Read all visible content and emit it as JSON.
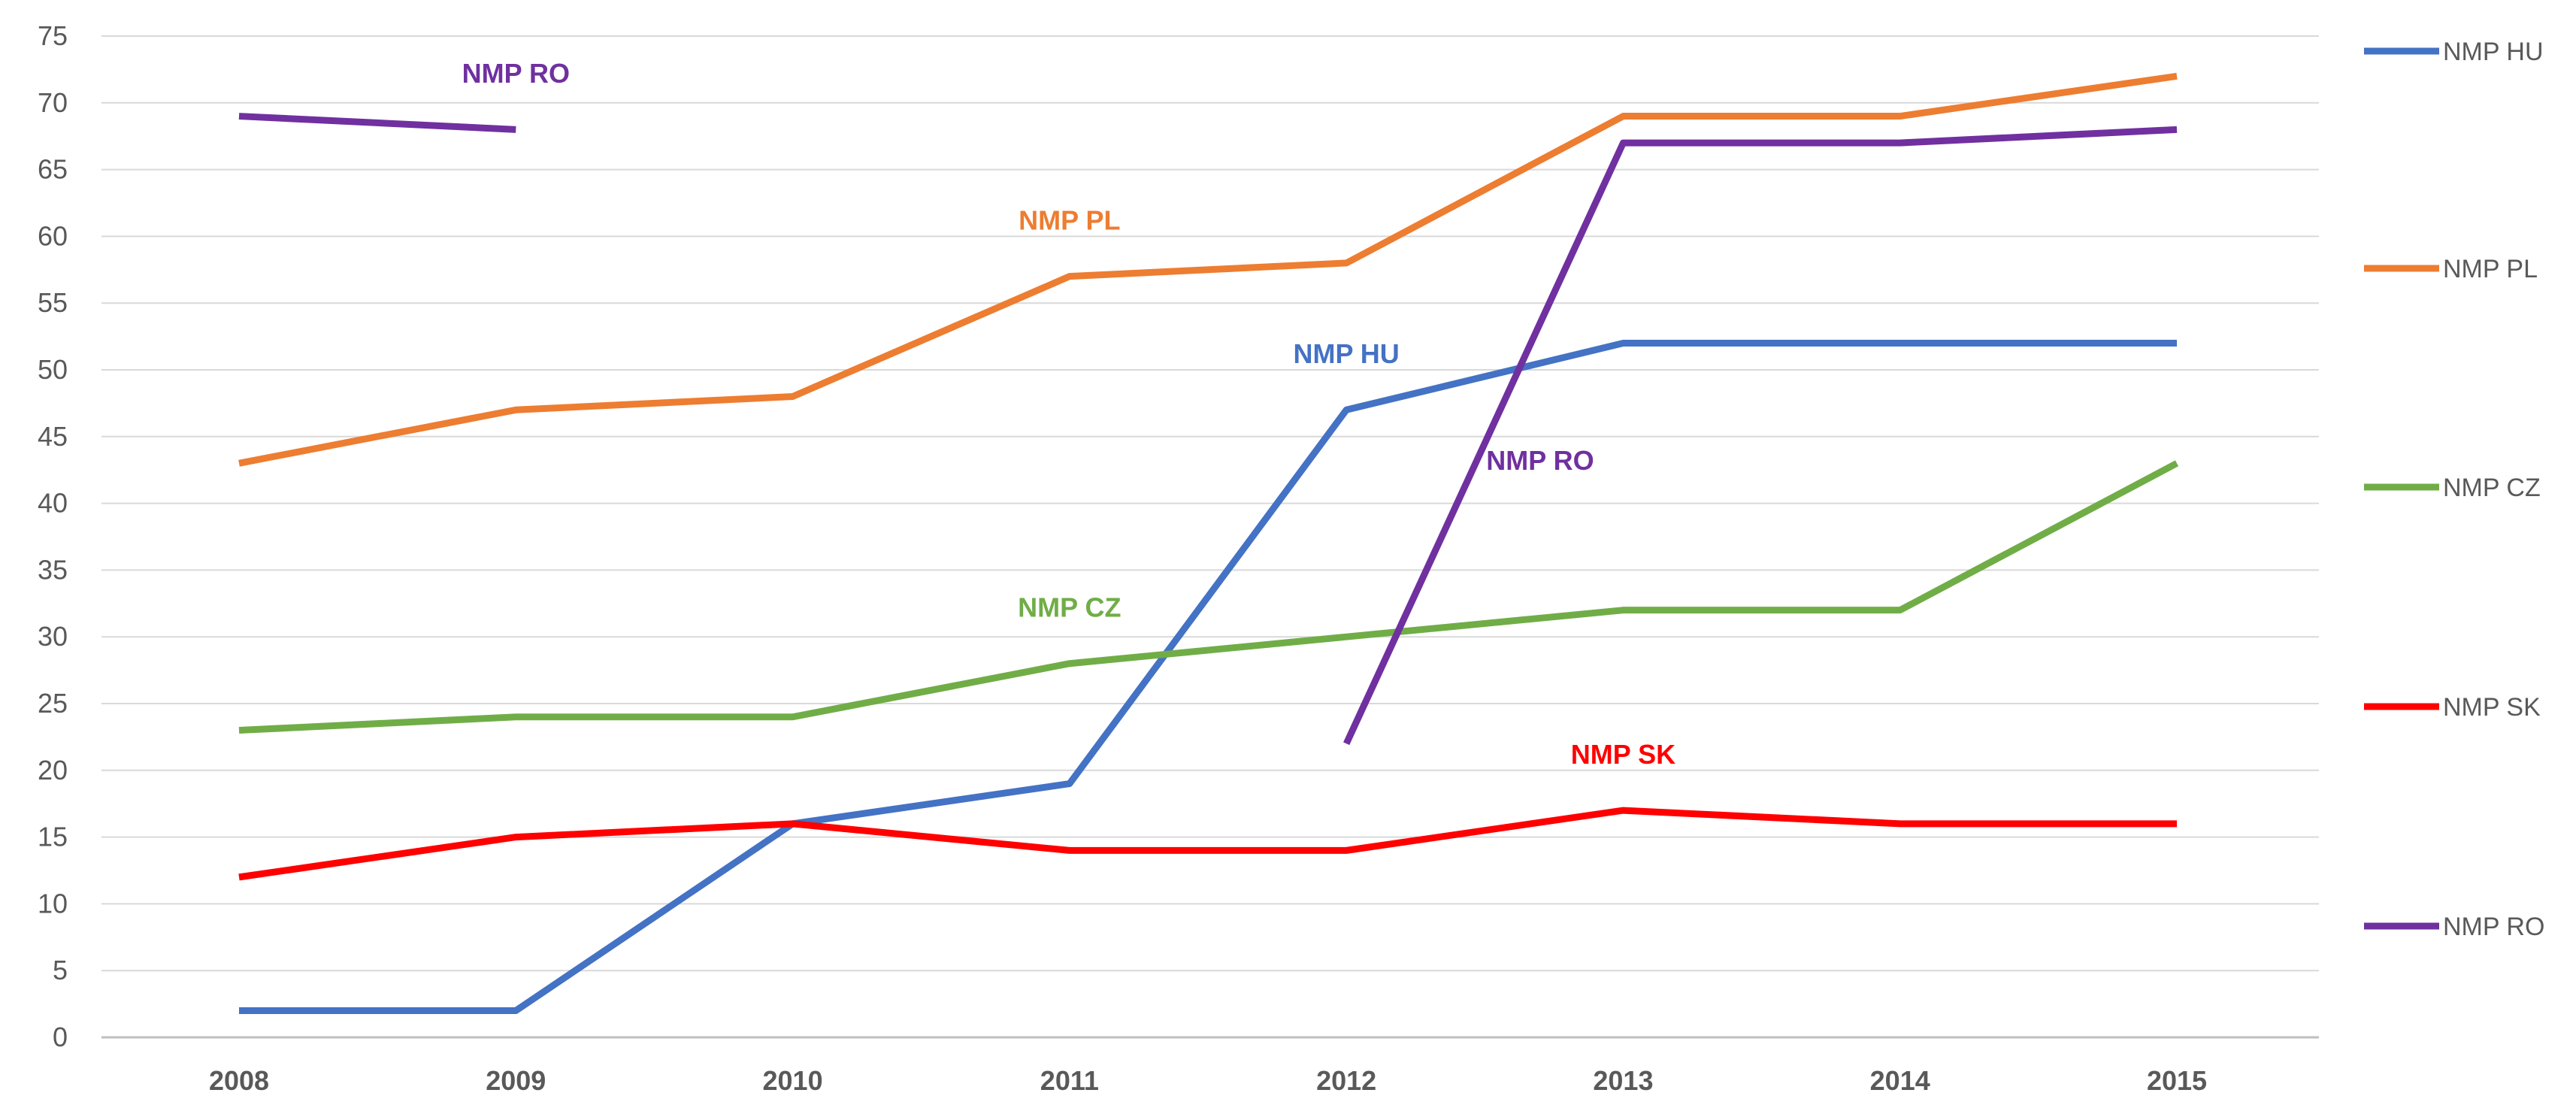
{
  "chart_data": {
    "type": "line",
    "title": "",
    "xlabel": "",
    "ylabel": "",
    "categories": [
      "2008",
      "2009",
      "2010",
      "2011",
      "2012",
      "2013",
      "2014",
      "2015"
    ],
    "ylim": [
      0,
      75
    ],
    "yticks": [
      0,
      5,
      10,
      15,
      20,
      25,
      30,
      35,
      40,
      45,
      50,
      55,
      60,
      65,
      70,
      75
    ],
    "grid": true,
    "legend_position": "right",
    "series": [
      {
        "name": "NMP HU",
        "color": "#4472C4",
        "values": [
          2,
          2,
          16,
          19,
          47,
          52,
          52,
          52
        ],
        "annotation": {
          "text": "NMP HU",
          "at_category": "2012",
          "at_value": 50.5
        }
      },
      {
        "name": "NMP PL",
        "color": "#ED7D31",
        "values": [
          43,
          47,
          48,
          57,
          58,
          69,
          69,
          72
        ],
        "annotation": {
          "text": "NMP PL",
          "at_category": "2011",
          "at_value": 60.5
        }
      },
      {
        "name": "NMP CZ",
        "color": "#70AD47",
        "values": [
          23,
          24,
          24,
          28,
          30,
          32,
          32,
          43
        ],
        "annotation": {
          "text": "NMP CZ",
          "at_category": "2011",
          "at_value": 31.5
        }
      },
      {
        "name": "NMP SK",
        "color": "#FF0000",
        "values": [
          12,
          15,
          16,
          14,
          14,
          17,
          16,
          16
        ],
        "annotation": {
          "text": "NMP SK",
          "at_category": "2013",
          "at_value": 20.5
        }
      },
      {
        "name": "NMP RO",
        "color": "#7030A0",
        "values": [
          69,
          68,
          null,
          null,
          22,
          67,
          67,
          68
        ],
        "annotations": [
          {
            "text": "NMP RO",
            "at_category": "2009",
            "at_value": 71.5
          },
          {
            "text": "NMP RO",
            "at_category": "2012.7",
            "at_value": 42.5
          }
        ]
      }
    ]
  }
}
